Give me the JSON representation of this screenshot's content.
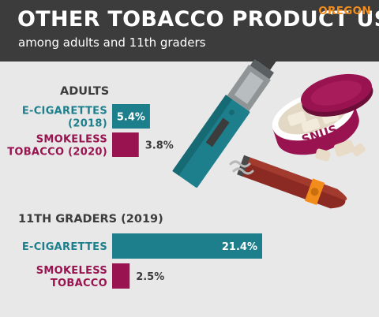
{
  "header": {
    "title": "OTHER TOBACCO PRODUCT USE",
    "subtitle": "among adults and 11th graders",
    "brand": "OREGON"
  },
  "illustration": {
    "snus_text": "SNUS",
    "icons": [
      "e-cigarette-icon",
      "snus-tin-icon",
      "cigar-icon",
      "smoke-wisp-icon"
    ]
  },
  "colors": {
    "header_bg": "#3c3c3c",
    "page_bg": "#e8e8e8",
    "brand": "#f28c1b",
    "teal": "#1e7f8c",
    "maroon": "#98134f",
    "dark_text": "#3c3c3c"
  },
  "chart_data": {
    "type": "bar",
    "orientation": "horizontal",
    "xlim": [
      0,
      21.4
    ],
    "unit": "%",
    "groups": [
      {
        "title": "ADULTS",
        "bars": [
          {
            "label": [
              "E-CIGARETTES",
              "(2018)"
            ],
            "value": 5.4,
            "display": "5.4%",
            "color": "#1e7f8c"
          },
          {
            "label": [
              "SMOKELESS",
              "TOBACCO (2020)"
            ],
            "value": 3.8,
            "display": "3.8%",
            "color": "#98134f"
          }
        ]
      },
      {
        "title": "11TH GRADERS (2019)",
        "bars": [
          {
            "label": [
              "E-CIGARETTES"
            ],
            "value": 21.4,
            "display": "21.4%",
            "color": "#1e7f8c"
          },
          {
            "label": [
              "SMOKELESS",
              "TOBACCO"
            ],
            "value": 2.5,
            "display": "2.5%",
            "color": "#98134f"
          }
        ]
      }
    ]
  }
}
